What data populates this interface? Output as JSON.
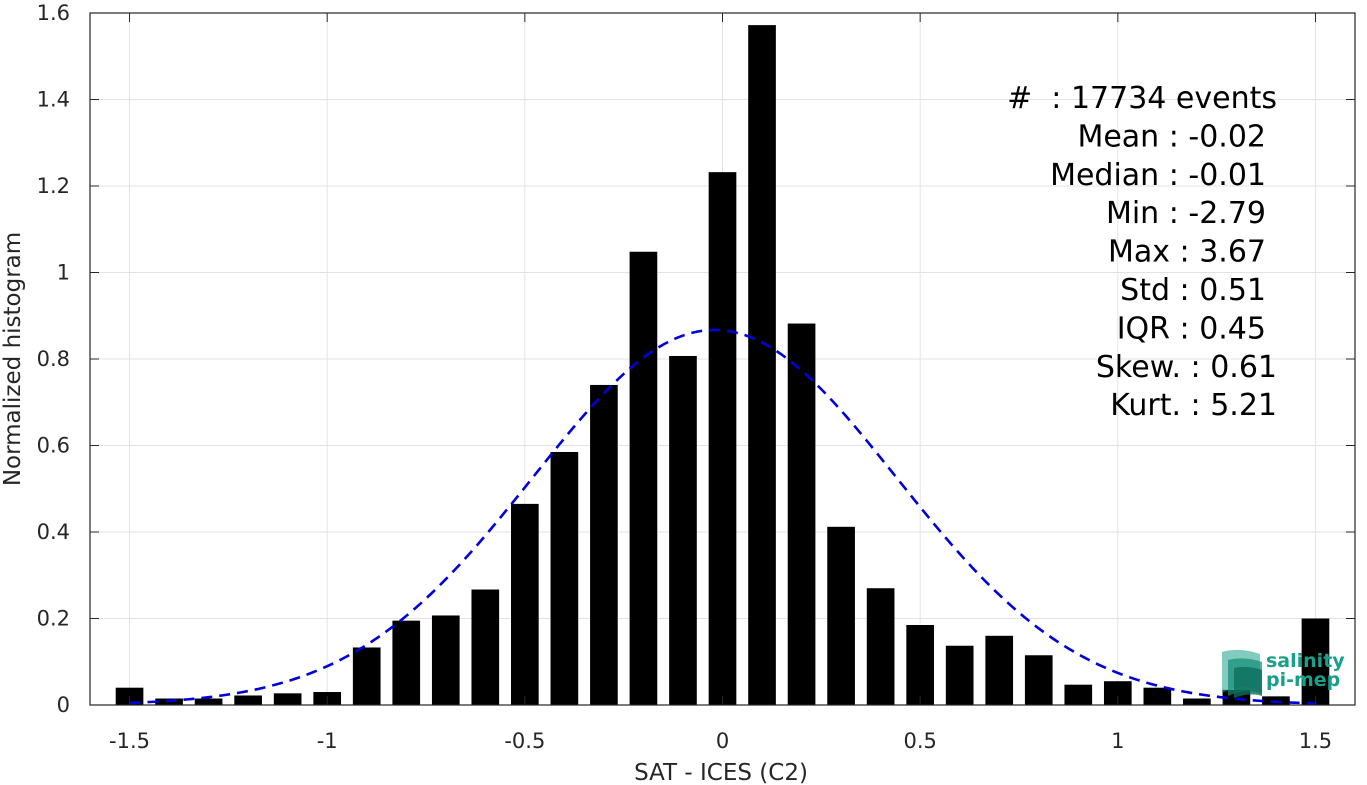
{
  "chart_data": {
    "type": "bar",
    "xlabel": "SAT - ICES (C2)",
    "ylabel": "Normalized histogram",
    "xlim": [
      -1.6,
      1.6
    ],
    "ylim": [
      0,
      1.6
    ],
    "xticks": [
      -1.5,
      -1,
      -0.5,
      0,
      0.5,
      1,
      1.5
    ],
    "xtick_labels": [
      "-1.5",
      "-1",
      "-0.5",
      "0",
      "0.5",
      "1",
      "1.5"
    ],
    "yticks": [
      0,
      0.2,
      0.4,
      0.6,
      0.8,
      1,
      1.2,
      1.4,
      1.6
    ],
    "ytick_labels": [
      "0",
      "0.2",
      "0.4",
      "0.6",
      "0.8",
      "1",
      "1.2",
      "1.4",
      "1.6"
    ],
    "grid": true,
    "bar_color": "#000000",
    "x": [
      -1.5,
      -1.4,
      -1.3,
      -1.2,
      -1.1,
      -1.0,
      -0.9,
      -0.8,
      -0.7,
      -0.6,
      -0.5,
      -0.4,
      -0.3,
      -0.2,
      -0.1,
      0.0,
      0.1,
      0.2,
      0.3,
      0.4,
      0.5,
      0.6,
      0.7,
      0.8,
      0.9,
      1.0,
      1.1,
      1.2,
      1.3,
      1.4,
      1.5
    ],
    "values": [
      0.04,
      0.015,
      0.015,
      0.022,
      0.027,
      0.03,
      0.133,
      0.195,
      0.207,
      0.267,
      0.465,
      0.585,
      0.74,
      1.048,
      0.807,
      1.232,
      1.572,
      0.882,
      0.412,
      0.27,
      0.185,
      0.137,
      0.16,
      0.115,
      0.047,
      0.055,
      0.04,
      0.015,
      0.035,
      0.02,
      0.2
    ],
    "fit": {
      "type": "gaussian",
      "mean": -0.02,
      "std": 0.46,
      "color": "#0000dd",
      "style": "dashed"
    },
    "annotations": [
      "#  : 17734 events",
      "Mean : -0.02",
      "Median : -0.01",
      "Min : -2.79",
      "Max : 3.67",
      "Std : 0.51",
      "IQR : 0.45",
      "Skew. : 0.61",
      "Kurt. : 5.21"
    ]
  },
  "logo": {
    "line1": "salinity",
    "line2": "pi-mep",
    "color": "#1aa08a"
  }
}
